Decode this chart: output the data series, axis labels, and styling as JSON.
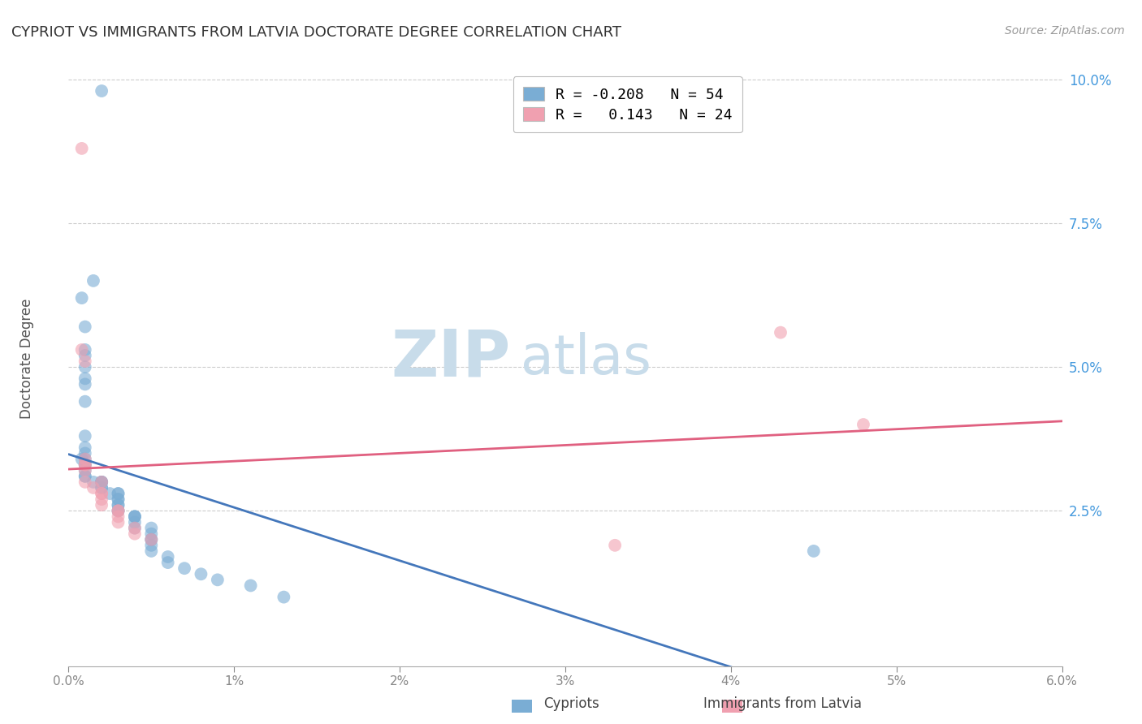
{
  "title": "CYPRIOT VS IMMIGRANTS FROM LATVIA DOCTORATE DEGREE CORRELATION CHART",
  "source": "Source: ZipAtlas.com",
  "ylabel": "Doctorate Degree",
  "xlim": [
    0.0,
    0.06
  ],
  "ylim": [
    -0.002,
    0.105
  ],
  "xticks": [
    0.0,
    0.01,
    0.02,
    0.03,
    0.04,
    0.05,
    0.06
  ],
  "xticklabels": [
    "0.0%",
    "1%",
    "2%",
    "3%",
    "4%",
    "5%",
    "6.0%"
  ],
  "yticks": [
    0.025,
    0.05,
    0.075,
    0.1
  ],
  "yticklabels": [
    "2.5%",
    "5.0%",
    "7.5%",
    "10.0%"
  ],
  "cypriot_x": [
    0.002,
    0.0015,
    0.0008,
    0.001,
    0.001,
    0.001,
    0.001,
    0.001,
    0.001,
    0.001,
    0.001,
    0.001,
    0.001,
    0.001,
    0.0008,
    0.001,
    0.001,
    0.001,
    0.001,
    0.001,
    0.0015,
    0.002,
    0.002,
    0.002,
    0.002,
    0.002,
    0.0025,
    0.003,
    0.003,
    0.003,
    0.003,
    0.003,
    0.003,
    0.003,
    0.003,
    0.004,
    0.004,
    0.004,
    0.004,
    0.004,
    0.005,
    0.005,
    0.005,
    0.005,
    0.005,
    0.005,
    0.006,
    0.006,
    0.007,
    0.008,
    0.009,
    0.011,
    0.013,
    0.045
  ],
  "cypriot_y": [
    0.098,
    0.065,
    0.062,
    0.057,
    0.053,
    0.052,
    0.05,
    0.048,
    0.047,
    0.044,
    0.038,
    0.036,
    0.035,
    0.034,
    0.034,
    0.033,
    0.033,
    0.032,
    0.031,
    0.031,
    0.03,
    0.03,
    0.03,
    0.03,
    0.029,
    0.029,
    0.028,
    0.028,
    0.028,
    0.027,
    0.027,
    0.026,
    0.026,
    0.025,
    0.025,
    0.024,
    0.024,
    0.024,
    0.023,
    0.022,
    0.022,
    0.021,
    0.02,
    0.02,
    0.019,
    0.018,
    0.017,
    0.016,
    0.015,
    0.014,
    0.013,
    0.012,
    0.01,
    0.018
  ],
  "latvia_x": [
    0.0008,
    0.0008,
    0.001,
    0.001,
    0.001,
    0.001,
    0.001,
    0.001,
    0.0015,
    0.002,
    0.002,
    0.002,
    0.002,
    0.002,
    0.003,
    0.003,
    0.003,
    0.003,
    0.004,
    0.004,
    0.005,
    0.033,
    0.043,
    0.048
  ],
  "latvia_y": [
    0.088,
    0.053,
    0.051,
    0.034,
    0.033,
    0.033,
    0.032,
    0.03,
    0.029,
    0.03,
    0.028,
    0.028,
    0.027,
    0.026,
    0.025,
    0.025,
    0.024,
    0.023,
    0.022,
    0.021,
    0.02,
    0.019,
    0.056,
    0.04
  ],
  "blue_color": "#7aadd4",
  "pink_color": "#f0a0b0",
  "blue_line_color": "#4477bb",
  "pink_line_color": "#e06080",
  "watermark_zip": "ZIP",
  "watermark_atlas": "atlas",
  "watermark_color_zip": "#c8dcea",
  "watermark_color_atlas": "#c8dcea",
  "background_color": "#ffffff",
  "grid_color": "#cccccc",
  "legend_label1": "R = -0.208",
  "legend_n1": "N = 54",
  "legend_label2": "R =   0.143",
  "legend_n2": "N = 24"
}
